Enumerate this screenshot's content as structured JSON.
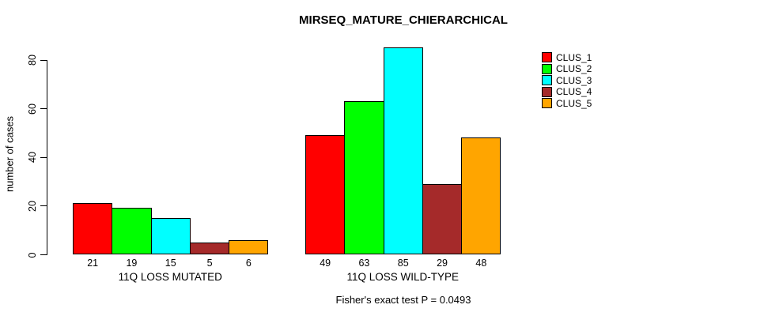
{
  "chart_data": {
    "type": "bar",
    "title": "MIRSEQ_MATURE_CHIERARCHICAL",
    "xlabel": "",
    "ylabel": "number of cases",
    "categories": [
      "11Q LOSS MUTATED",
      "11Q LOSS WILD-TYPE"
    ],
    "series": [
      {
        "name": "CLUS_1",
        "color": "#ff0000",
        "values": [
          21,
          49
        ]
      },
      {
        "name": "CLUS_2",
        "color": "#00ff00",
        "values": [
          19,
          63
        ]
      },
      {
        "name": "CLUS_3",
        "color": "#00ffff",
        "values": [
          15,
          85
        ]
      },
      {
        "name": "CLUS_4",
        "color": "#a52a2a",
        "values": [
          5,
          29
        ]
      },
      {
        "name": "CLUS_5",
        "color": "#ffa500",
        "values": [
          6,
          48
        ]
      }
    ],
    "yticks": [
      0,
      20,
      40,
      60,
      80
    ],
    "ylim": [
      0,
      85
    ],
    "grid": false,
    "bar_value_labels_shown": true,
    "legend_position": "right",
    "legend_entries": [
      "CLUS_1",
      "CLUS_2",
      "CLUS_3",
      "CLUS_4",
      "CLUS_5"
    ],
    "annotation": "Fisher's exact test P = 0.0493"
  }
}
